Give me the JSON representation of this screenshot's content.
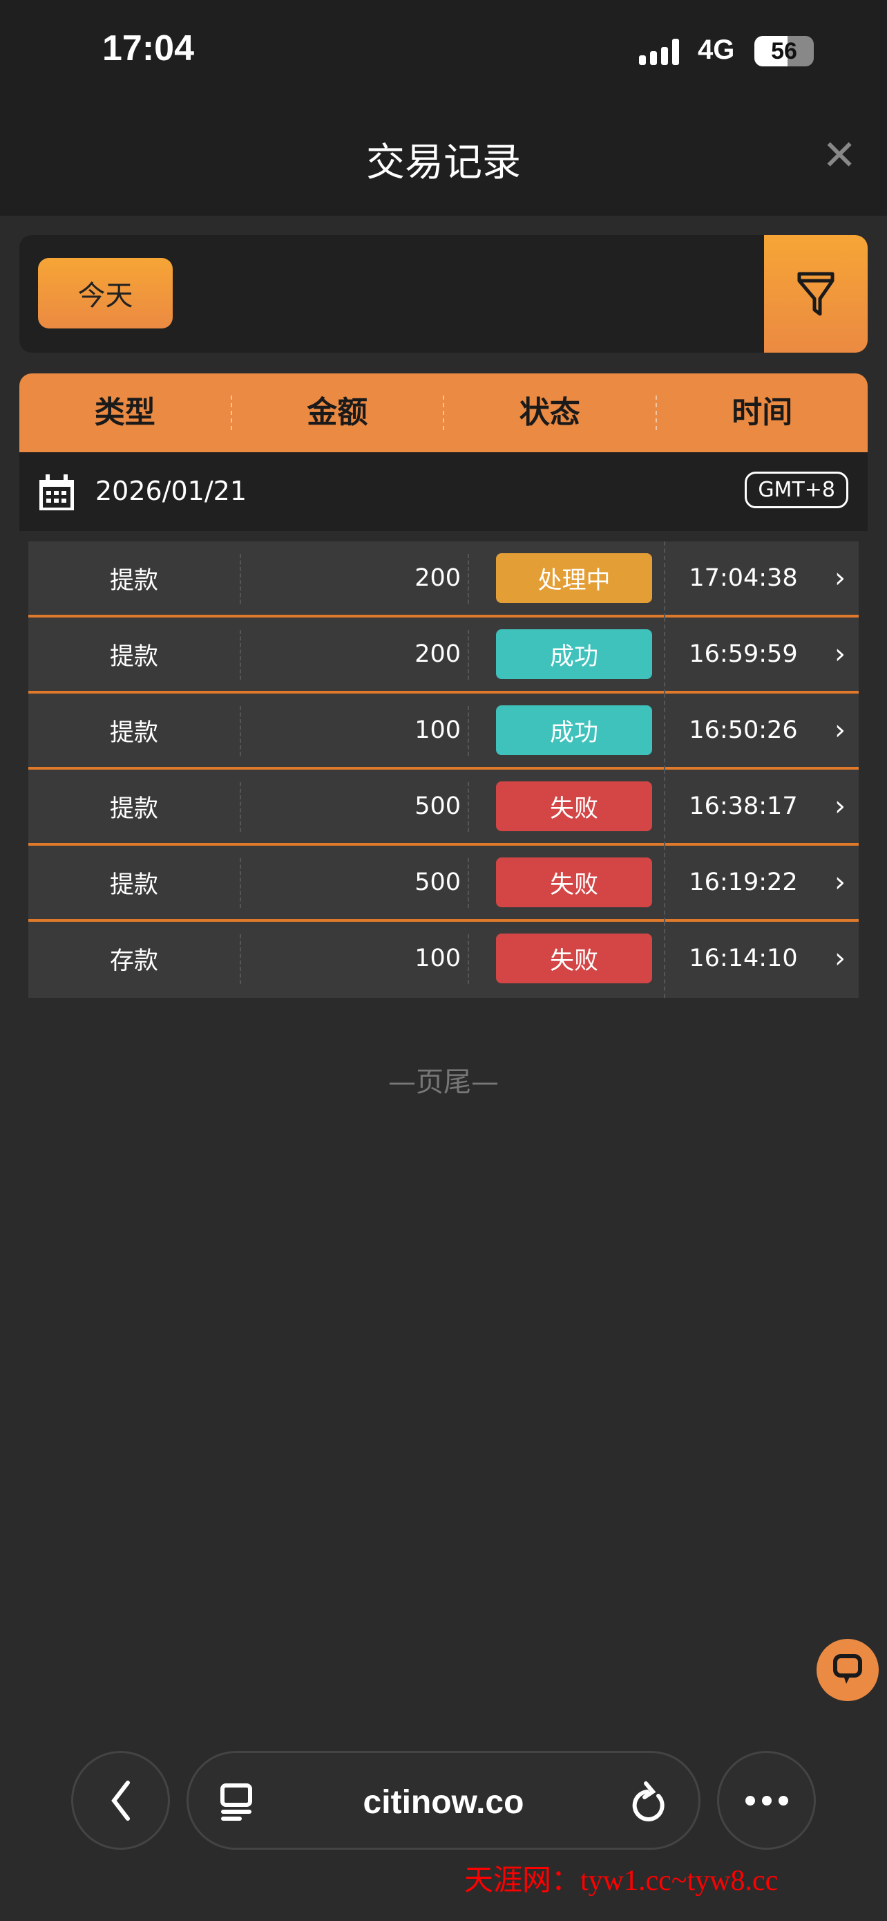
{
  "status_bar": {
    "time": "17:04",
    "network": "4G",
    "battery": "56"
  },
  "header": {
    "title": "交易记录",
    "close_icon": "close-icon"
  },
  "filter": {
    "today_label": "今天",
    "filter_icon": "funnel-icon"
  },
  "table": {
    "headers": [
      "类型",
      "金额",
      "状态",
      "时间"
    ],
    "date": "2026/01/21",
    "timezone": "GMT+8",
    "rows": [
      {
        "type": "提款",
        "amount": "200",
        "status": "处理中",
        "status_color": "#e49e36",
        "time": "17:04:38"
      },
      {
        "type": "提款",
        "amount": "200",
        "status": "成功",
        "status_color": "#3fc1bc",
        "time": "16:59:59"
      },
      {
        "type": "提款",
        "amount": "100",
        "status": "成功",
        "status_color": "#3fc1bc",
        "time": "16:50:26"
      },
      {
        "type": "提款",
        "amount": "500",
        "status": "失败",
        "status_color": "#d44545",
        "time": "16:38:17"
      },
      {
        "type": "提款",
        "amount": "500",
        "status": "失败",
        "status_color": "#d44545",
        "time": "16:19:22"
      },
      {
        "type": "存款",
        "amount": "100",
        "status": "失败",
        "status_color": "#d44545",
        "time": "16:14:10"
      }
    ]
  },
  "footer": "—页尾—",
  "browser": {
    "url": "citinow.co"
  },
  "watermark": "天涯网：tyw1.cc~tyw8.cc",
  "colors": {
    "accent": "#eb8a42",
    "background": "#2b2b2b"
  }
}
